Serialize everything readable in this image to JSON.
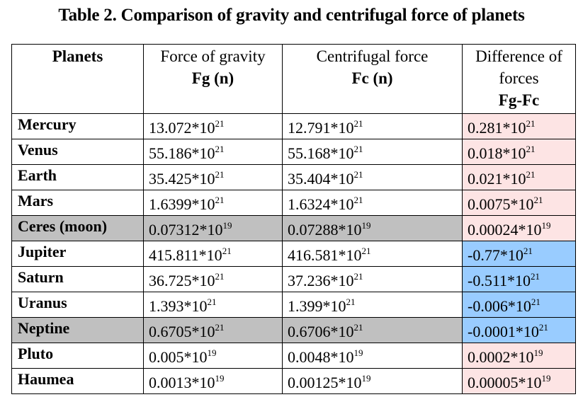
{
  "title": "Table 2. Comparison of gravity and centrifugal force of planets",
  "headers": {
    "planets": "Planets",
    "gravity_line1": "Force of gravity",
    "gravity_line2": "Fg  (n)",
    "centrifugal_line1": "Centrifugal force",
    "centrifugal_line2": "Fc  (n)",
    "difference_line1": "Difference of",
    "difference_line2": "forces",
    "difference_line3": "Fg-Fc"
  },
  "colors": {
    "grey_row": "#c0c0c0",
    "positive_difference": "#fde4e4",
    "negative_difference": "#99ccff"
  },
  "rows": [
    {
      "planet": "Mercury",
      "fg_mantissa": "13.072*10",
      "fg_exp": "21",
      "fc_mantissa": "12.791*10",
      "fc_exp": "21",
      "diff_mantissa": "0.281*10",
      "diff_exp": "21"
    },
    {
      "planet": "Venus",
      "fg_mantissa": "55.186*10",
      "fg_exp": "21",
      "fc_mantissa": "55.168*10",
      "fc_exp": "21",
      "diff_mantissa": "0.018*10",
      "diff_exp": "21"
    },
    {
      "planet": "Earth",
      "fg_mantissa": "35.425*10",
      "fg_exp": "21",
      "fc_mantissa": "35.404*10",
      "fc_exp": "21",
      "diff_mantissa": "0.021*10",
      "diff_exp": "21"
    },
    {
      "planet": "Mars",
      "fg_mantissa": "1.6399*10",
      "fg_exp": "21",
      "fc_mantissa": "1.6324*10",
      "fc_exp": "21",
      "diff_mantissa": "0.0075*10",
      "diff_exp": "21"
    },
    {
      "planet": "Ceres (moon)",
      "fg_mantissa": "0.07312*10",
      "fg_exp": "19",
      "fc_mantissa": "0.07288*10",
      "fc_exp": "19",
      "diff_mantissa": "0.00024*10",
      "diff_exp": "19"
    },
    {
      "planet": "Jupiter",
      "fg_mantissa": "415.811*10",
      "fg_exp": "21",
      "fc_mantissa": "416.581*10",
      "fc_exp": "21",
      "diff_mantissa": "-0.77*10",
      "diff_exp": "21"
    },
    {
      "planet": "Saturn",
      "fg_mantissa": "36.725*10",
      "fg_exp": "21",
      "fc_mantissa": "37.236*10",
      "fc_exp": "21",
      "diff_mantissa": "-0.511*10",
      "diff_exp": "21"
    },
    {
      "planet": "Uranus",
      "fg_mantissa": "1.393*10",
      "fg_exp": "21",
      "fc_mantissa": "1.399*10",
      "fc_exp": "21",
      "diff_mantissa": "-0.006*10",
      "diff_exp": "21"
    },
    {
      "planet": "Neptine",
      "fg_mantissa": "0.6705*10",
      "fg_exp": "21",
      "fc_mantissa": "0.6706*10",
      "fc_exp": "21",
      "diff_mantissa": "-0.0001*10",
      "diff_exp": "21"
    },
    {
      "planet": "Pluto",
      "fg_mantissa": "0.005*10",
      "fg_exp": "19",
      "fc_mantissa": "0.0048*10",
      "fc_exp": "19",
      "diff_mantissa": "0.0002*10",
      "diff_exp": "19"
    },
    {
      "planet": "Haumea",
      "fg_mantissa": "0.0013*10",
      "fg_exp": "19",
      "fc_mantissa": "0.00125*10",
      "fc_exp": "19",
      "diff_mantissa": "0.00005*10",
      "diff_exp": "19"
    }
  ]
}
